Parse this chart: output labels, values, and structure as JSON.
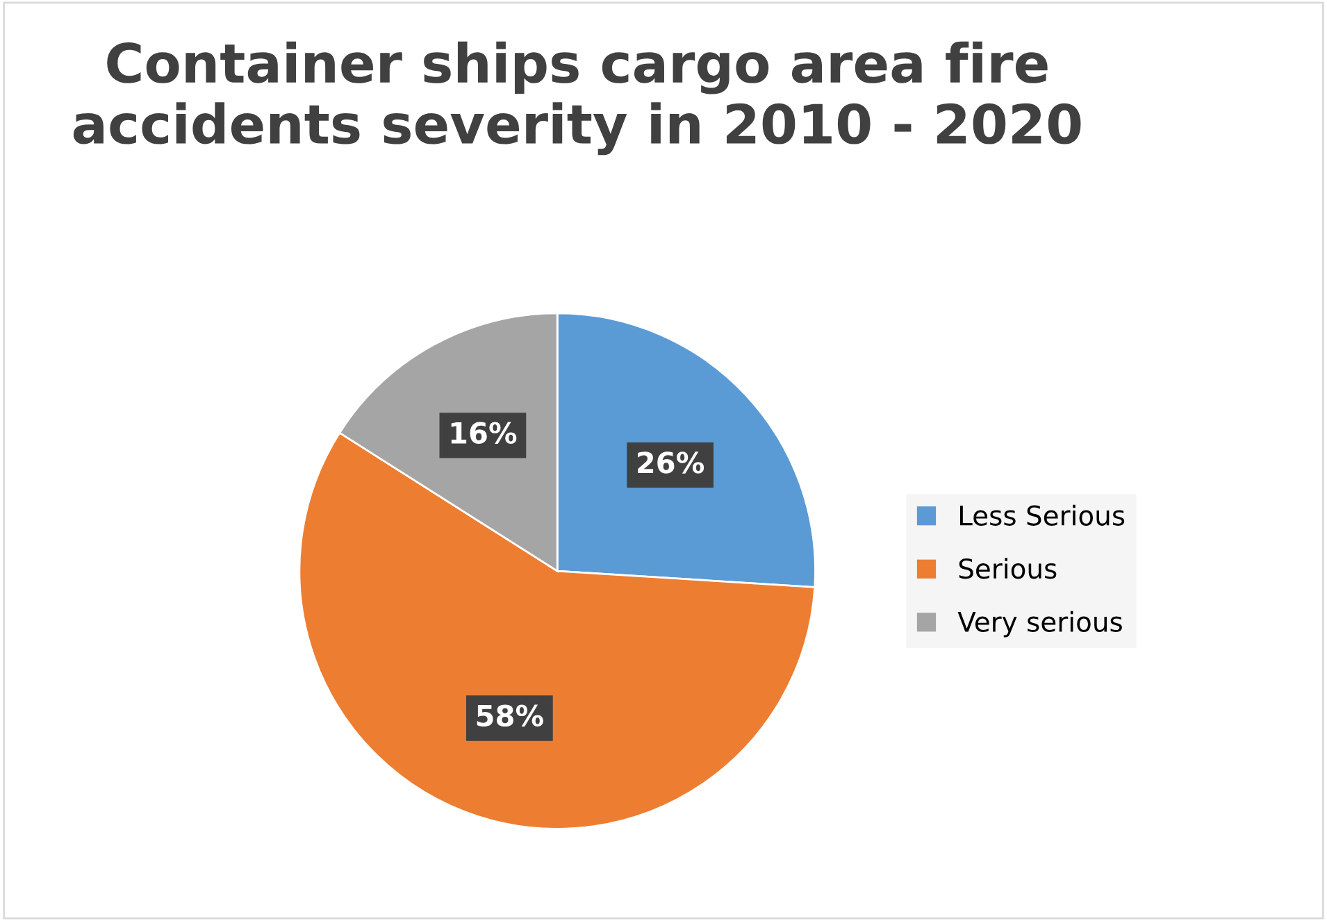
{
  "chart_data": {
    "type": "pie",
    "title": "Container ships cargo area fire accidents severity in 2010 - 2020",
    "categories": [
      "Less Serious",
      "Serious",
      "Very serious"
    ],
    "values": [
      26,
      58,
      16
    ],
    "colors": [
      "#5b9bd5",
      "#ed7d31",
      "#a5a5a5"
    ],
    "value_labels": [
      "26%",
      "58%",
      "16%"
    ],
    "legend": "right"
  }
}
